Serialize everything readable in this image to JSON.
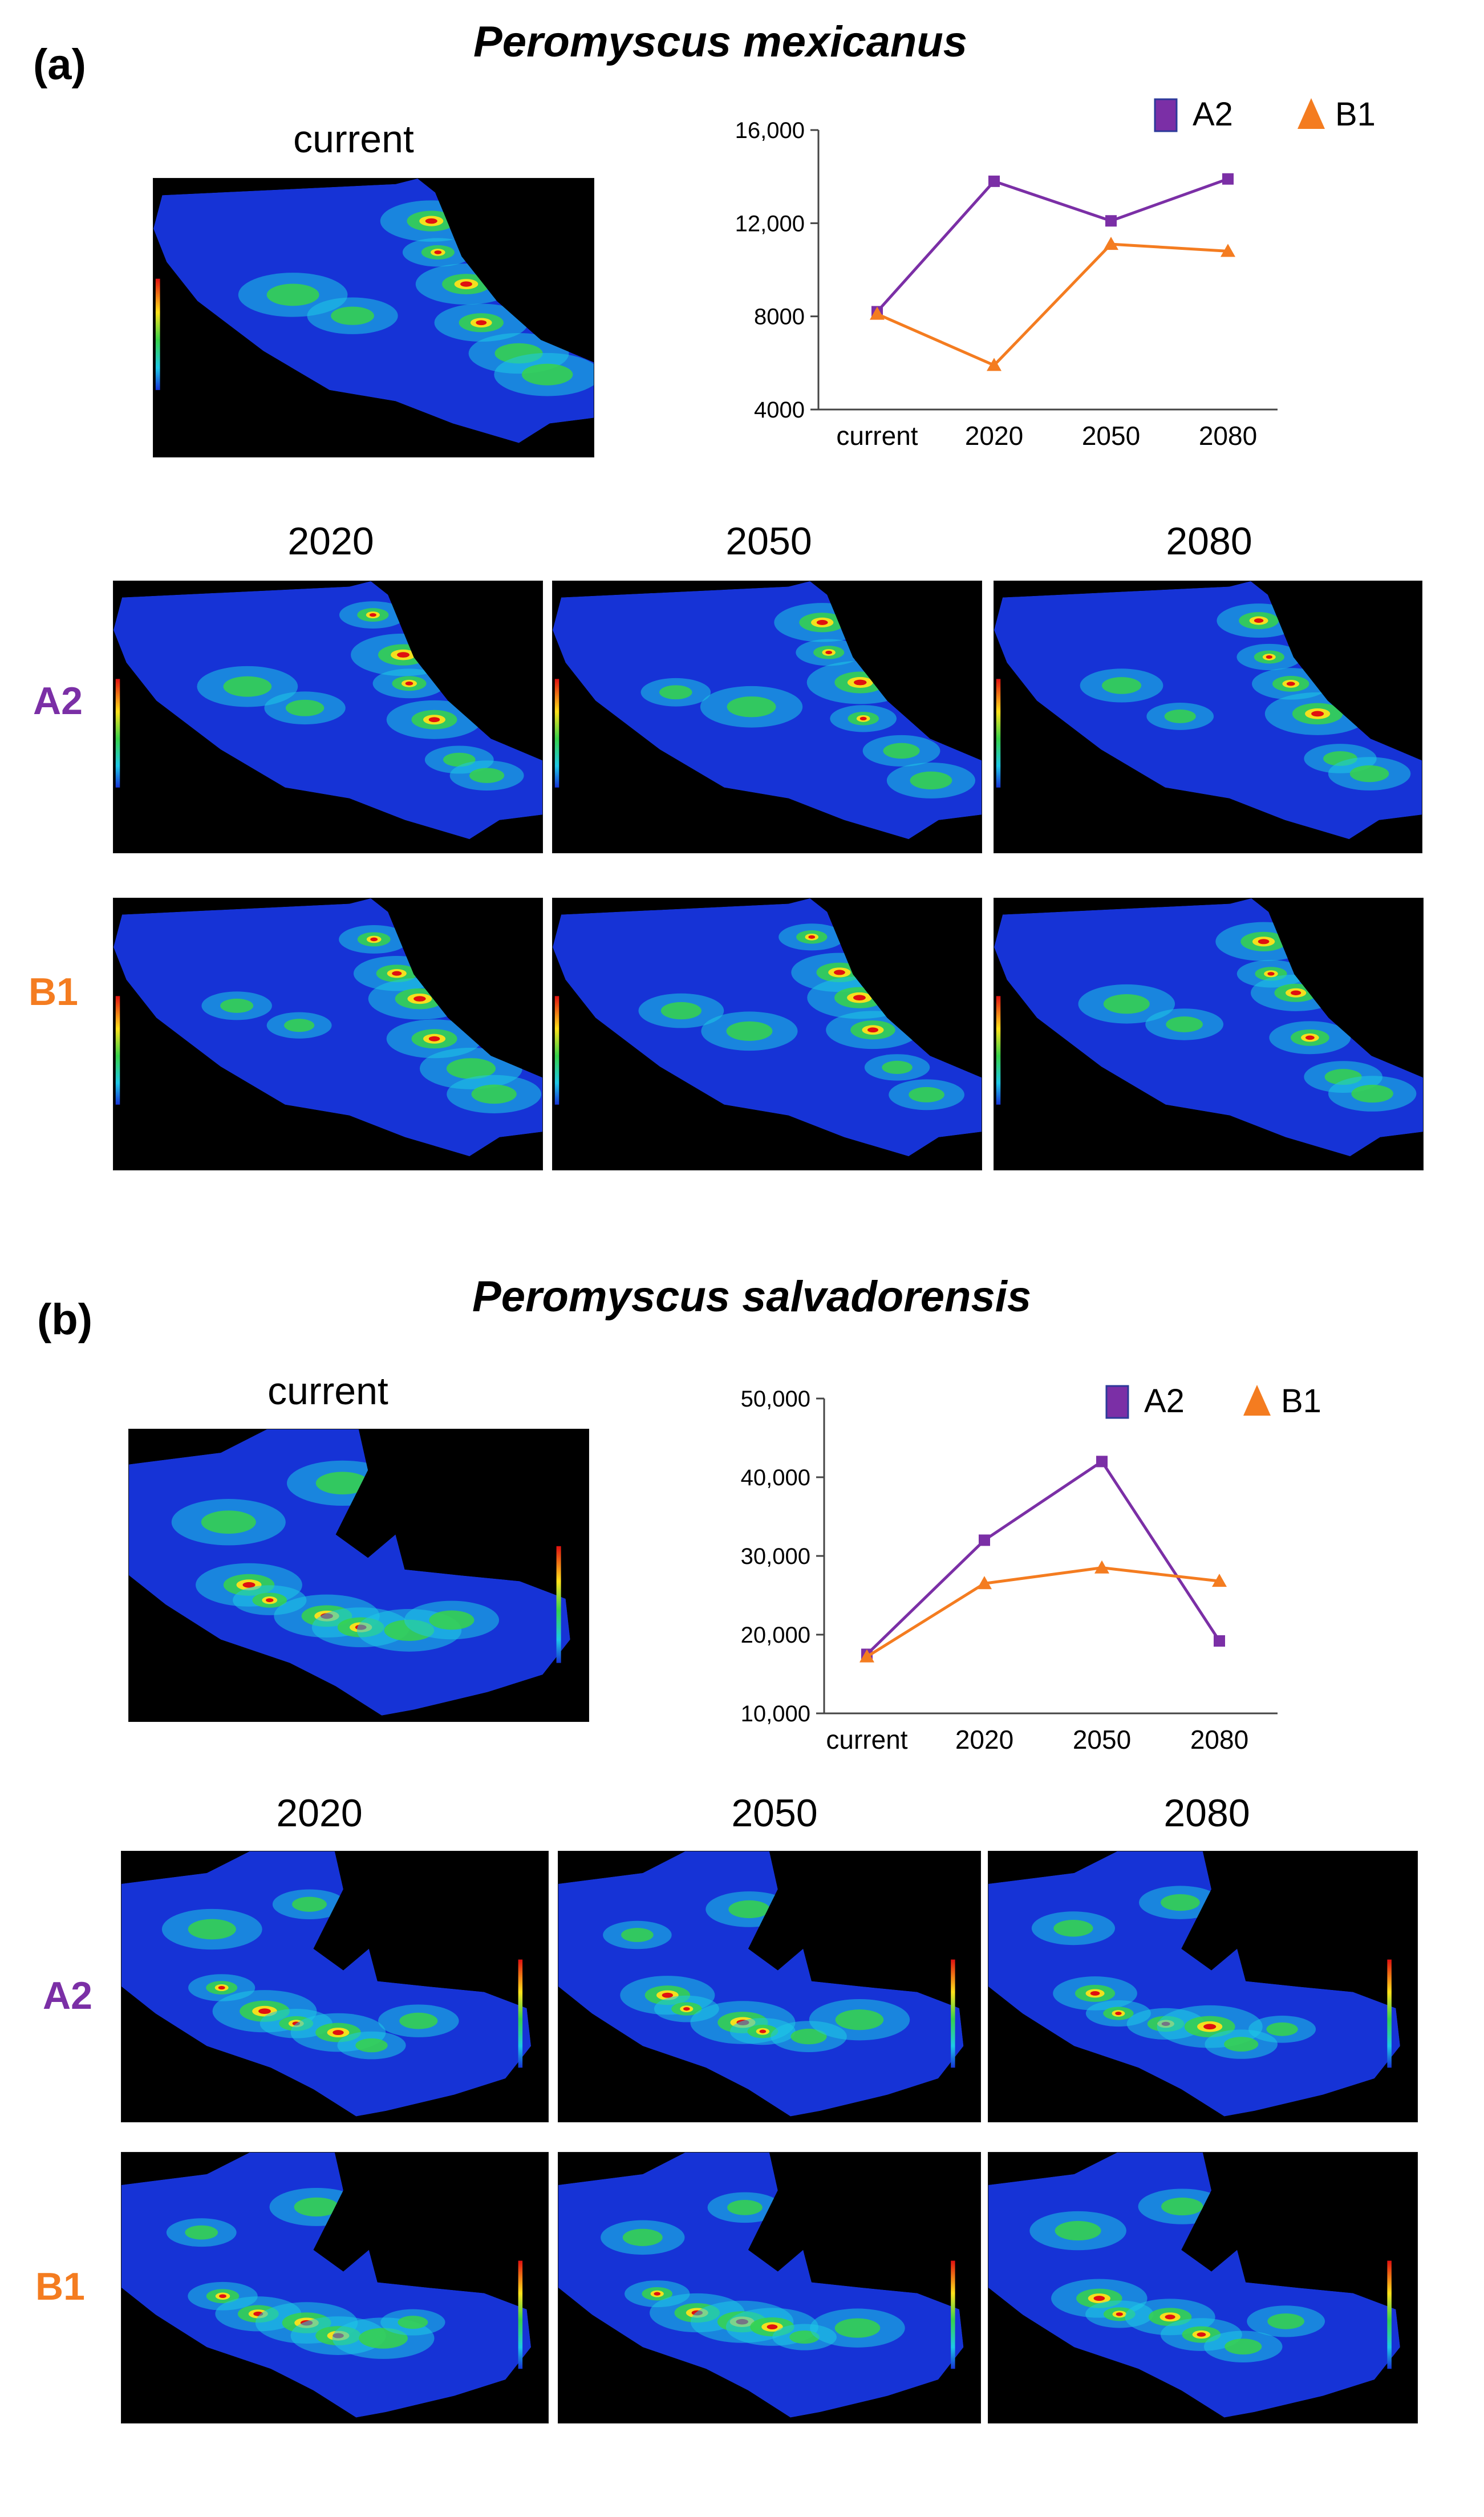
{
  "colors": {
    "a2": "#7b2fa6",
    "b1": "#f47c20",
    "map_low": "#1633d6",
    "map_high": "#e01010"
  },
  "panels": [
    {
      "id": "a",
      "letter": "(a)",
      "species": "Peromyscus mexicanus",
      "current_label": "current",
      "years": [
        "2020",
        "2050",
        "2080"
      ],
      "rows": [
        {
          "label": "A2",
          "color": "#7b2fa6"
        },
        {
          "label": "B1",
          "color": "#f47c20"
        }
      ],
      "chart_data": {
        "type": "line",
        "categories": [
          "current",
          "2020",
          "2050",
          "2080"
        ],
        "ylim": [
          4000,
          16000
        ],
        "yticks": [
          "16,000",
          "12,000",
          "8000",
          "4000"
        ],
        "ytick_values": [
          16000,
          12000,
          8000,
          4000
        ],
        "series": [
          {
            "name": "A2",
            "marker": "square",
            "color": "#7b2fa6",
            "values": [
              8200,
              13800,
              12100,
              13900
            ]
          },
          {
            "name": "B1",
            "marker": "triangle",
            "color": "#f47c20",
            "values": [
              8100,
              5900,
              11100,
              10800
            ]
          }
        ]
      }
    },
    {
      "id": "b",
      "letter": "(b)",
      "species": "Peromyscus salvadorensis",
      "current_label": "current",
      "years": [
        "2020",
        "2050",
        "2080"
      ],
      "rows": [
        {
          "label": "A2",
          "color": "#7b2fa6"
        },
        {
          "label": "B1",
          "color": "#f47c20"
        }
      ],
      "chart_data": {
        "type": "line",
        "categories": [
          "current",
          "2020",
          "2050",
          "2080"
        ],
        "ylim": [
          10000,
          50000
        ],
        "yticks": [
          "50,000",
          "40,000",
          "30,000",
          "20,000",
          "10,000"
        ],
        "ytick_values": [
          50000,
          40000,
          30000,
          20000,
          10000
        ],
        "series": [
          {
            "name": "A2",
            "marker": "square",
            "color": "#7b2fa6",
            "values": [
              17500,
              32000,
              42000,
              19200
            ]
          },
          {
            "name": "B1",
            "marker": "triangle",
            "color": "#f47c20",
            "values": [
              17200,
              26500,
              28500,
              26800
            ]
          }
        ]
      }
    }
  ]
}
